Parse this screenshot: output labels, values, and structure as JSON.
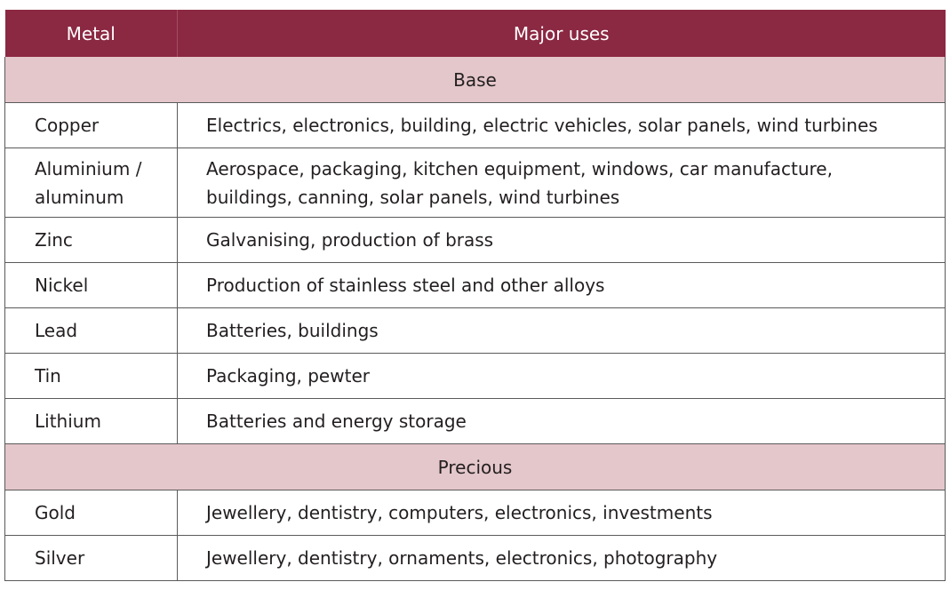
{
  "table": {
    "header": {
      "metal": "Metal",
      "uses": "Major uses"
    },
    "sections": [
      {
        "name": "Base",
        "rows": [
          {
            "metal": "Copper",
            "uses": "Electrics, electronics, building, electric vehicles, solar panels, wind turbines"
          },
          {
            "metal_line1": "Aluminium /",
            "metal_line2": "aluminum",
            "uses_line1": "Aerospace, packaging, kitchen equipment, windows, car manufacture,",
            "uses_line2": "buildings, canning, solar panels, wind turbines"
          },
          {
            "metal": "Zinc",
            "uses": "Galvanising, production of brass"
          },
          {
            "metal": "Nickel",
            "uses": "Production of stainless steel and other alloys"
          },
          {
            "metal": "Lead",
            "uses": "Batteries, buildings"
          },
          {
            "metal": "Tin",
            "uses": "Packaging, pewter"
          },
          {
            "metal": "Lithium",
            "uses": "Batteries and energy storage"
          }
        ]
      },
      {
        "name": "Precious",
        "rows": [
          {
            "metal": "Gold",
            "uses": "Jewellery, dentistry, computers, electronics, investments"
          },
          {
            "metal": "Silver",
            "uses": "Jewellery, dentistry, ornaments, electronics, photography"
          }
        ]
      }
    ],
    "colors": {
      "header_bg": "#8b2842",
      "section_bg": "#e4c7cb",
      "border": "#5a5a5a"
    }
  }
}
